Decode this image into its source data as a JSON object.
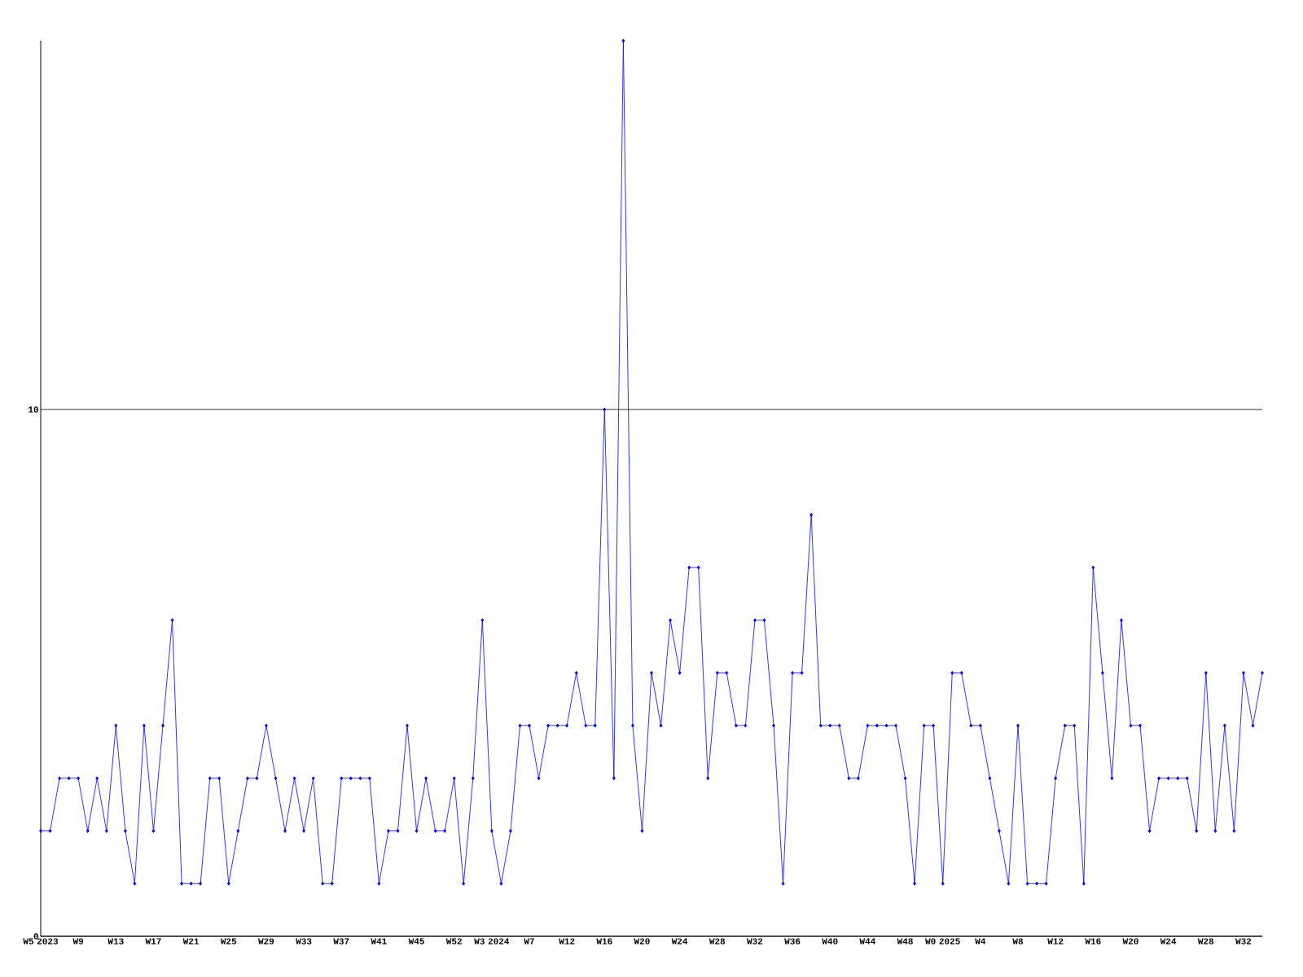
{
  "chart_data": {
    "type": "line",
    "categories": [
      "W5 2023",
      null,
      null,
      null,
      "W9",
      null,
      null,
      null,
      "W13",
      null,
      null,
      null,
      "W17",
      null,
      null,
      null,
      "W21",
      null,
      null,
      null,
      "W25",
      null,
      null,
      null,
      "W29",
      null,
      null,
      null,
      "W33",
      null,
      null,
      null,
      "W37",
      null,
      null,
      null,
      "W41",
      null,
      null,
      null,
      "W45",
      null,
      null,
      null,
      "W52",
      null,
      null,
      null,
      "W3 2024",
      null,
      null,
      null,
      "W7",
      null,
      null,
      null,
      "W12",
      null,
      null,
      null,
      "W16",
      null,
      null,
      null,
      "W20",
      null,
      null,
      null,
      "W24",
      null,
      null,
      null,
      "W28",
      null,
      null,
      null,
      "W32",
      null,
      null,
      null,
      "W36",
      null,
      null,
      null,
      "W40",
      null,
      null,
      null,
      "W44",
      null,
      null,
      null,
      "W48",
      null,
      null,
      null,
      "W0 2025",
      null,
      null,
      null,
      "W4",
      null,
      null,
      null,
      "W8",
      null,
      null,
      null,
      "W12",
      null,
      null,
      null,
      "W16",
      null,
      null,
      null,
      "W20",
      null,
      null,
      null,
      "W24",
      null,
      null,
      null,
      "W28",
      null,
      null,
      null,
      "W32",
      null,
      null
    ],
    "values": [
      2,
      2,
      3,
      3,
      3,
      2,
      3,
      2,
      4,
      2,
      1,
      4,
      2,
      4,
      6,
      1,
      1,
      1,
      3,
      3,
      1,
      2,
      3,
      3,
      4,
      3,
      2,
      3,
      2,
      3,
      1,
      1,
      3,
      3,
      3,
      3,
      1,
      2,
      2,
      4,
      2,
      3,
      2,
      2,
      3,
      1,
      3,
      6,
      2,
      1,
      2,
      4,
      4,
      3,
      4,
      4,
      4,
      5,
      4,
      4,
      10,
      3,
      17,
      4,
      2,
      5,
      4,
      6,
      5,
      7,
      7,
      3,
      5,
      5,
      4,
      4,
      6,
      6,
      4,
      1,
      5,
      5,
      8,
      4,
      4,
      4,
      3,
      3,
      4,
      4,
      4,
      4,
      3,
      1,
      4,
      4,
      1,
      5,
      5,
      4,
      4,
      3,
      2,
      1,
      4,
      1,
      1,
      1,
      3,
      4,
      4,
      1,
      7,
      5,
      3,
      6,
      4,
      4,
      2,
      3,
      3,
      3,
      3,
      2,
      5,
      2,
      4,
      2,
      5,
      4,
      5
    ],
    "color": "#0000ff",
    "marker": "diamond",
    "ylim": [
      0,
      17
    ],
    "yticks": [
      0,
      10
    ],
    "grid": "y"
  }
}
